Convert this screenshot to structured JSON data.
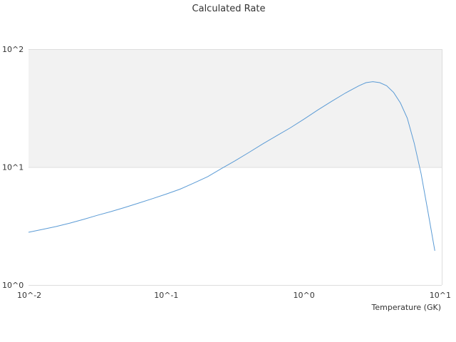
{
  "chart_data": {
    "type": "line",
    "title": "Calculated Rate",
    "xlabel": "Temperature (GK)",
    "ylabel": "",
    "x_scale": "log",
    "y_scale": "log",
    "xlim": [
      0.01,
      10
    ],
    "ylim": [
      1,
      100
    ],
    "x_ticks": [
      "10^-2",
      "10^-1",
      "10^0",
      "10^1"
    ],
    "y_ticks": [
      "10^0",
      "10^1",
      "10^2"
    ],
    "grid": true,
    "legend": "none",
    "colors": {
      "series": "#5b9bd5",
      "band": "#f2f2f2",
      "grid": "#dddddd"
    },
    "series": [
      {
        "x": [
          0.01,
          0.0126,
          0.0158,
          0.02,
          0.0251,
          0.0316,
          0.0398,
          0.0501,
          0.0631,
          0.0794,
          0.1,
          0.126,
          0.158,
          0.2,
          0.251,
          0.316,
          0.398,
          0.501,
          0.631,
          0.794,
          1.0,
          1.26,
          1.58,
          2.0,
          2.51,
          2.82,
          3.16,
          3.55,
          3.98,
          4.47,
          5.01,
          5.62,
          6.31,
          7.08,
          7.94,
          8.91
        ],
        "y": [
          2.8,
          2.96,
          3.13,
          3.35,
          3.6,
          3.9,
          4.2,
          4.55,
          4.95,
          5.4,
          5.9,
          6.5,
          7.3,
          8.3,
          9.7,
          11.3,
          13.3,
          15.7,
          18.4,
          21.5,
          25.5,
          30.5,
          36.0,
          42.5,
          49.0,
          52.0,
          53.0,
          52.0,
          49.0,
          43.0,
          35.0,
          26.0,
          16.0,
          8.8,
          4.2,
          1.95
        ]
      }
    ]
  }
}
